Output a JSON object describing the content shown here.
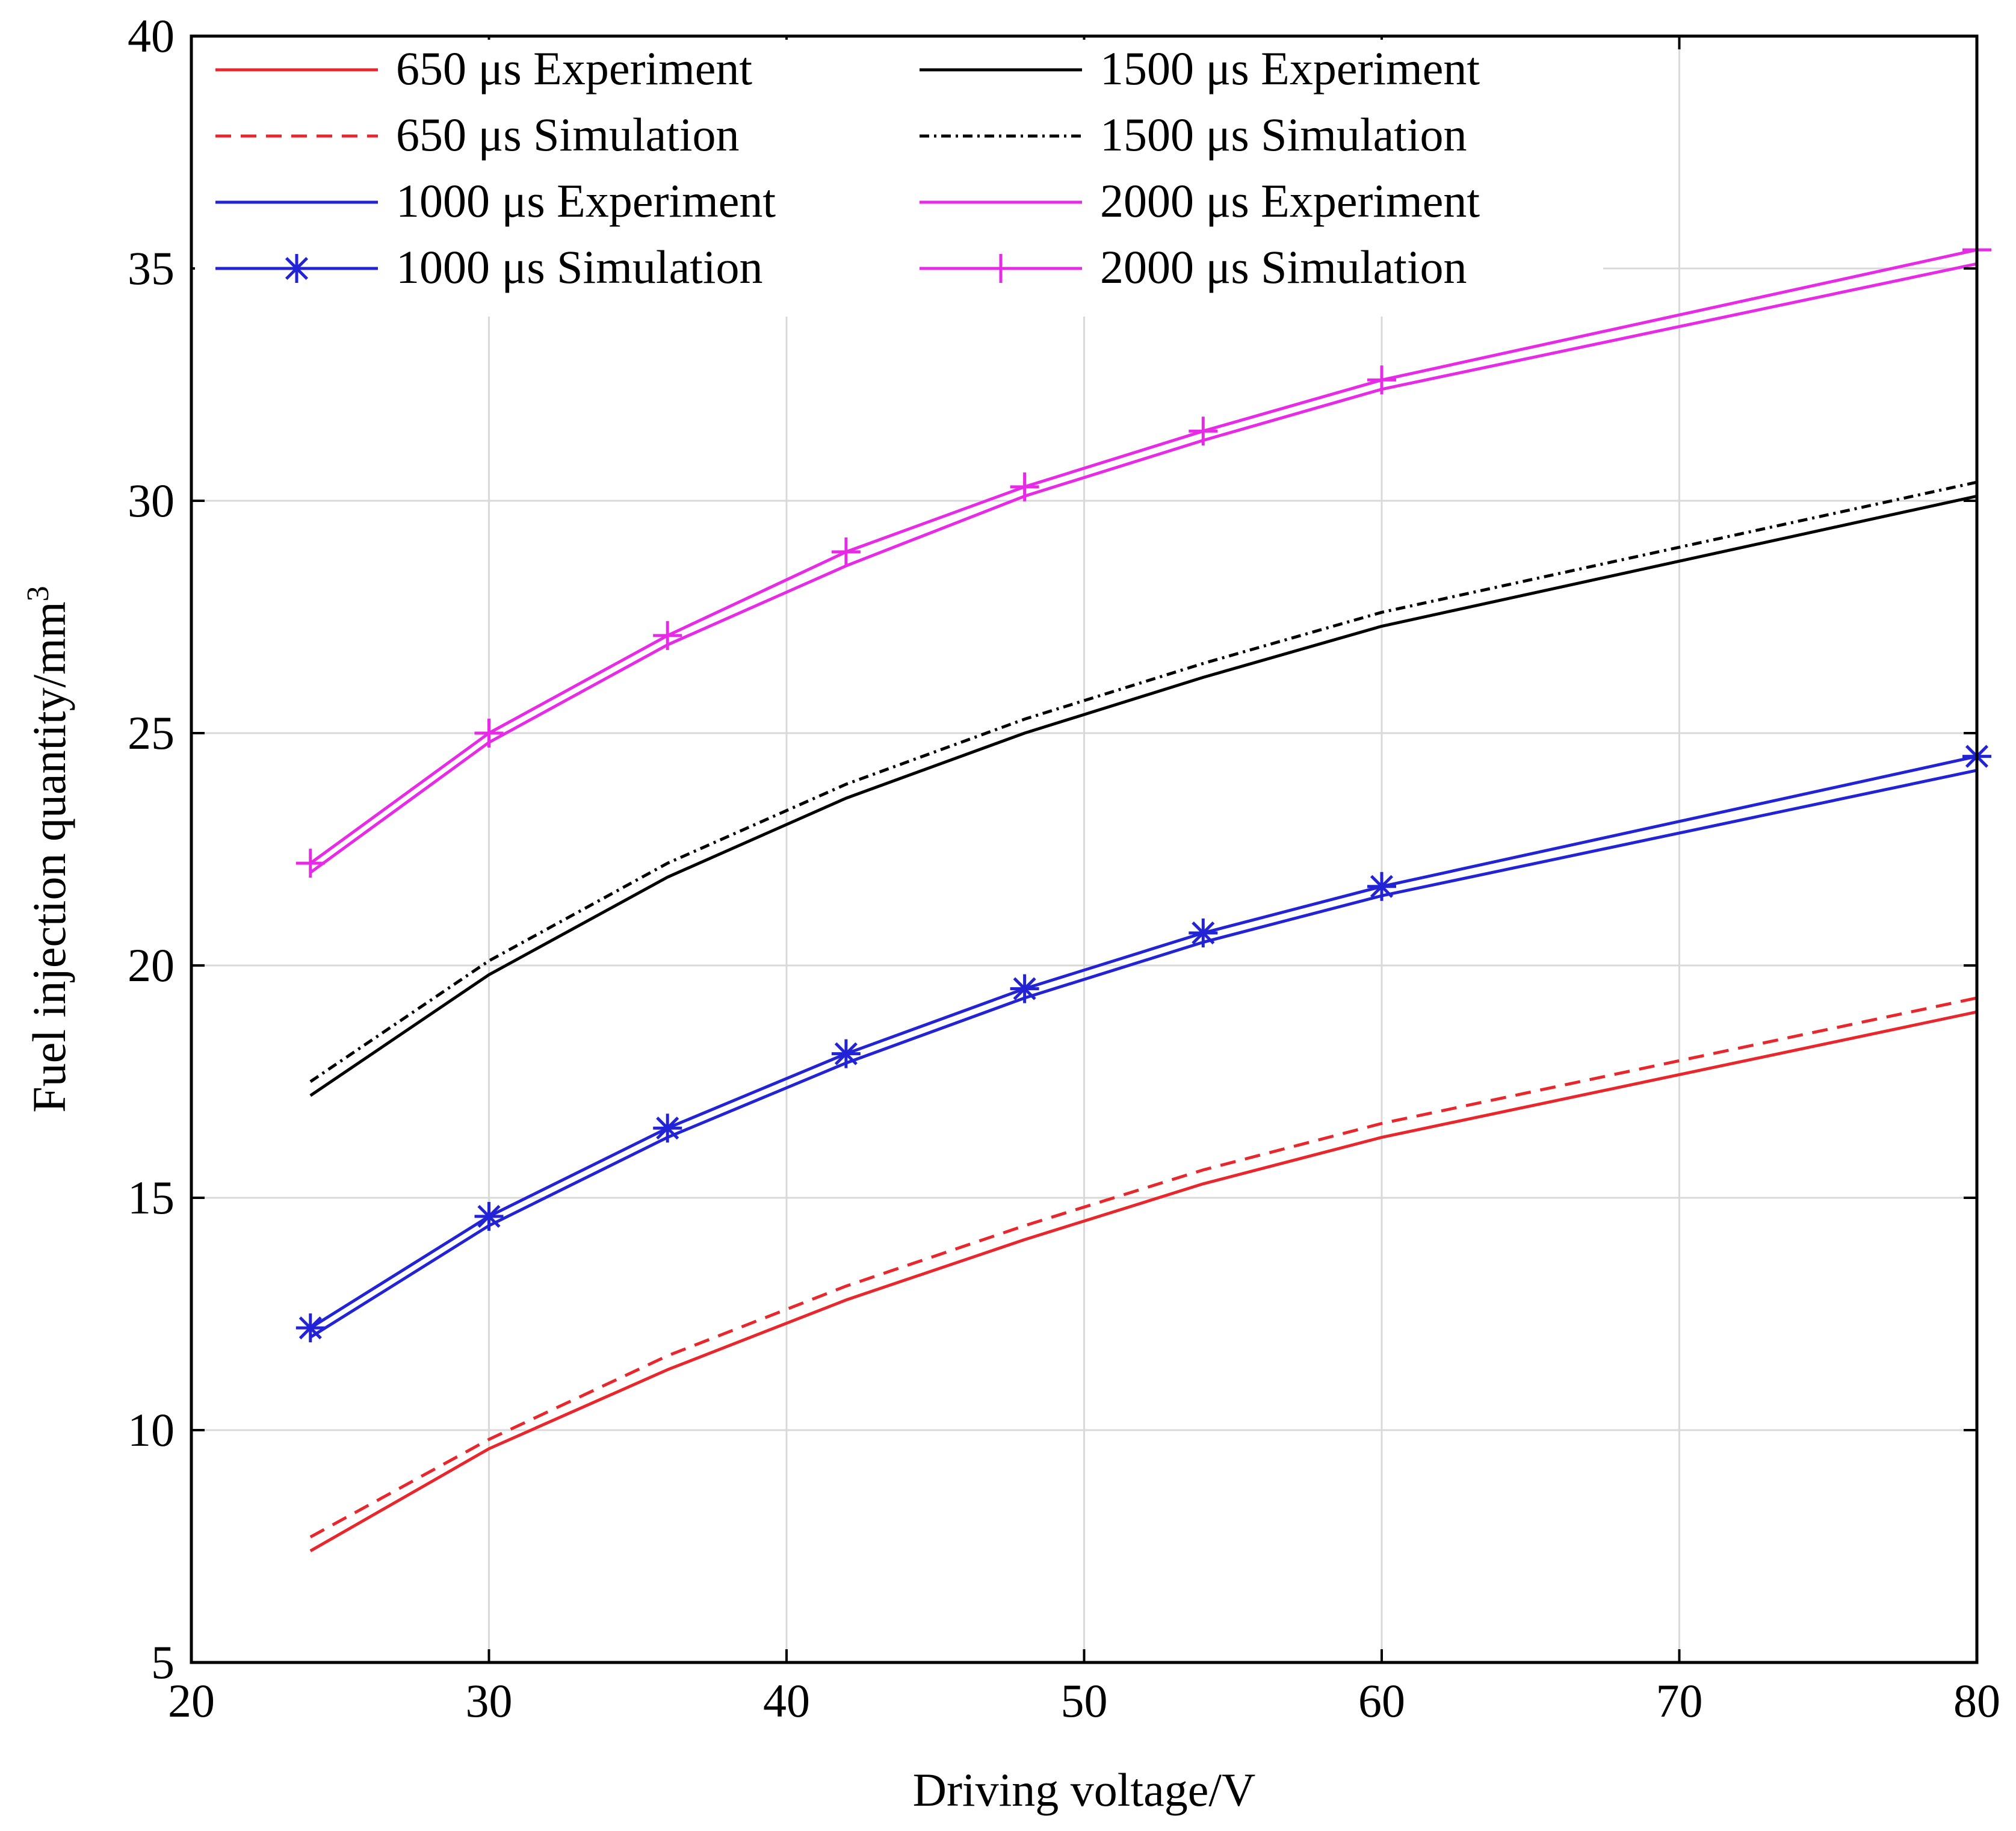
{
  "chart_data": {
    "type": "line",
    "title": "",
    "xlabel": "Driving voltage/V",
    "ylabel": "Fuel injection quantity/mm",
    "ylabel_superscript": "3",
    "xlim": [
      20,
      80
    ],
    "ylim": [
      5,
      40
    ],
    "xticks": [
      "20",
      "30",
      "40",
      "50",
      "60",
      "70",
      "80"
    ],
    "yticks": [
      "5",
      "10",
      "15",
      "20",
      "25",
      "30",
      "35",
      "40"
    ],
    "grid": true,
    "legend_position": "top-left",
    "x": [
      24,
      30,
      36,
      42,
      48,
      54,
      60,
      80
    ],
    "series": [
      {
        "name": "650  μs Experiment",
        "color": "#e8262c",
        "style": "solid",
        "marker": "none",
        "values": [
          7.4,
          9.6,
          11.3,
          12.8,
          14.1,
          15.3,
          16.3,
          19.0
        ]
      },
      {
        "name": "650  μs Simulation",
        "color": "#e8262c",
        "style": "dashed",
        "marker": "none",
        "values": [
          7.7,
          9.8,
          11.6,
          13.1,
          14.4,
          15.6,
          16.6,
          19.3
        ]
      },
      {
        "name": "1000 μs Experiment",
        "color": "#2323d6",
        "style": "solid",
        "marker": "none",
        "values": [
          12.0,
          14.4,
          16.3,
          17.9,
          19.3,
          20.5,
          21.5,
          24.2
        ]
      },
      {
        "name": "1000 μs Simulation",
        "color": "#2323d6",
        "style": "solid",
        "marker": "asterisk",
        "values": [
          12.2,
          14.6,
          16.5,
          18.1,
          19.5,
          20.7,
          21.7,
          24.5
        ]
      },
      {
        "name": "1500 μs Experiment",
        "color": "#000000",
        "style": "solid",
        "marker": "none",
        "values": [
          17.2,
          19.8,
          21.9,
          23.6,
          25.0,
          26.2,
          27.3,
          30.1
        ]
      },
      {
        "name": "1500 μs Simulation",
        "color": "#000000",
        "style": "dashdot",
        "marker": "none",
        "values": [
          17.5,
          20.1,
          22.2,
          23.9,
          25.3,
          26.5,
          27.6,
          30.4
        ]
      },
      {
        "name": "2000 μs Experiment",
        "color": "#e62ae6",
        "style": "solid",
        "marker": "none",
        "values": [
          22.0,
          24.8,
          26.9,
          28.6,
          30.1,
          31.3,
          32.4,
          35.1
        ]
      },
      {
        "name": "2000 μs Simulation",
        "color": "#e62ae6",
        "style": "solid",
        "marker": "plus",
        "values": [
          22.2,
          25.0,
          27.1,
          28.9,
          30.3,
          31.5,
          32.6,
          35.4
        ]
      }
    ]
  }
}
